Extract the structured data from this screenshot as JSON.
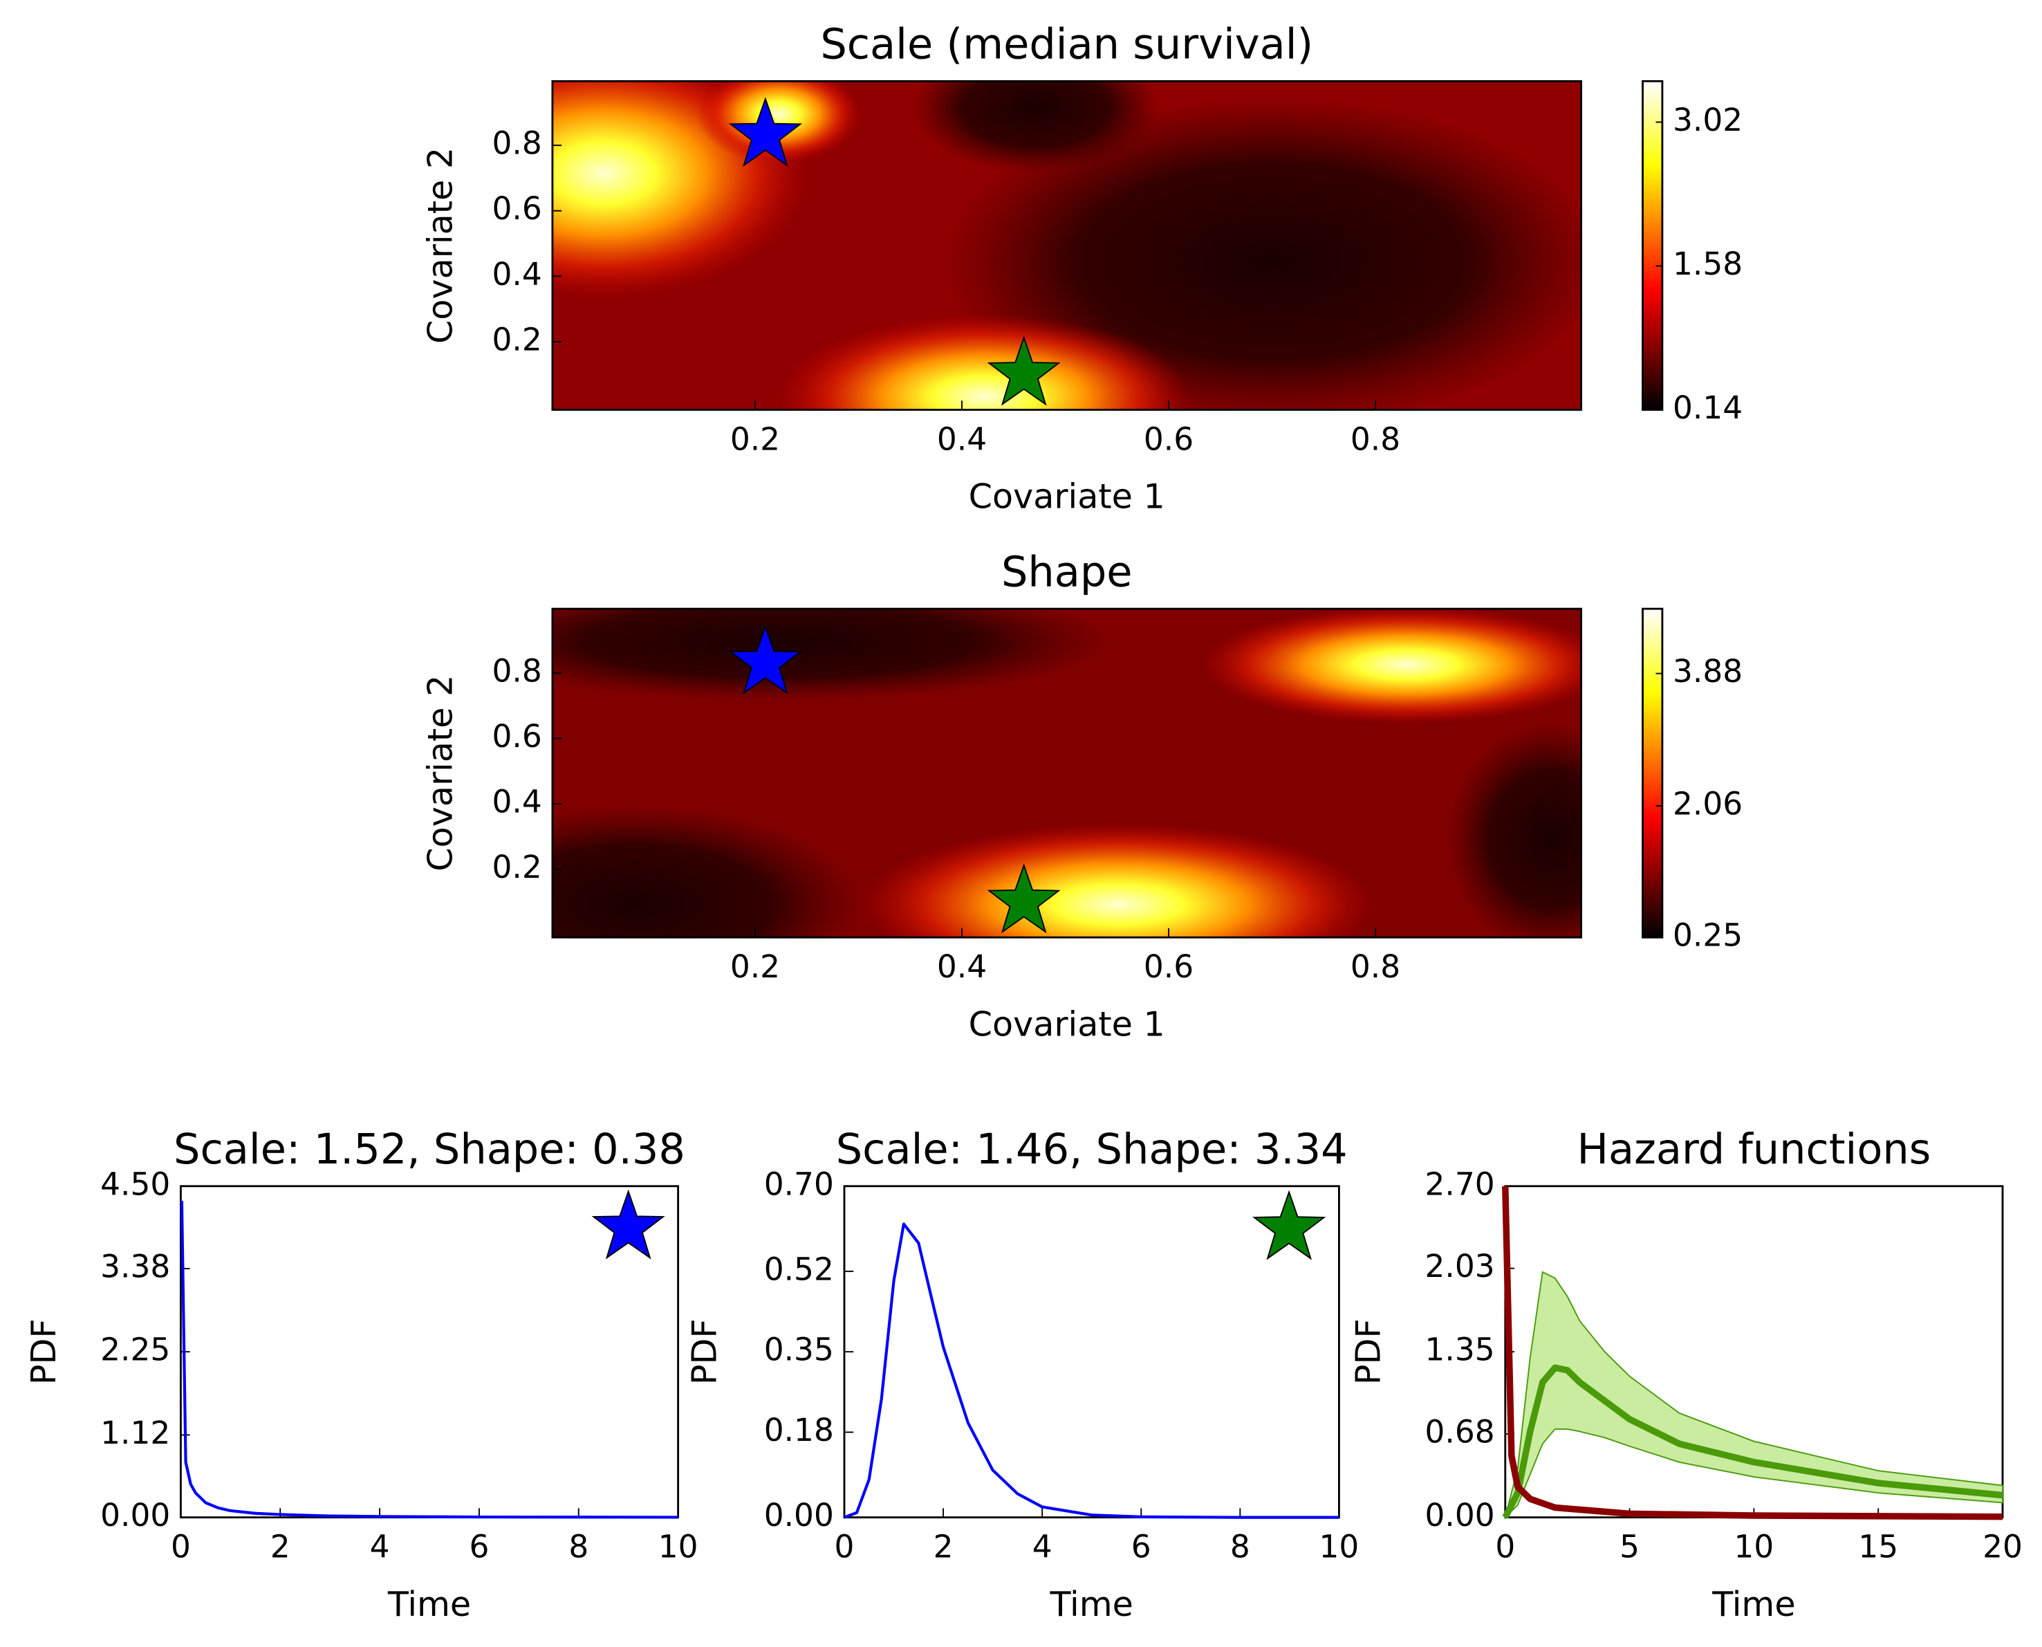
{
  "chart_data": [
    {
      "type": "contour",
      "title": "Scale (median survival)",
      "xlabel": "Covariate 1",
      "ylabel": "Covariate 2",
      "xlim": [
        0.004,
        0.999
      ],
      "ylim": [
        -0.008,
        0.996
      ],
      "xticks": [
        0.2,
        0.4,
        0.6,
        0.8
      ],
      "yticks": [
        0.2,
        0.4,
        0.6,
        0.8
      ],
      "colorbar": {
        "clim": [
          0.14,
          3.43
        ],
        "ticks": [
          0.14,
          1.58,
          3.02
        ]
      },
      "markers": [
        {
          "x": 0.21,
          "y": 0.83,
          "color": "#0000ff"
        },
        {
          "x": 0.46,
          "y": 0.1,
          "color": "#008000"
        }
      ]
    },
    {
      "type": "contour",
      "title": "Shape",
      "xlabel": "Covariate 1",
      "ylabel": "Covariate 2",
      "xlim": [
        0.004,
        0.999
      ],
      "ylim": [
        -0.008,
        0.996
      ],
      "xticks": [
        0.2,
        0.4,
        0.6,
        0.8
      ],
      "yticks": [
        0.2,
        0.4,
        0.6,
        0.8
      ],
      "colorbar": {
        "clim": [
          0.25,
          4.77
        ],
        "ticks": [
          0.25,
          2.06,
          3.88
        ]
      },
      "markers": [
        {
          "x": 0.21,
          "y": 0.83,
          "color": "#0000ff"
        },
        {
          "x": 0.46,
          "y": 0.1,
          "color": "#008000"
        }
      ]
    },
    {
      "type": "line",
      "title": "Scale: 1.52, Shape: 0.38",
      "xlabel": "Time",
      "ylabel": "PDF",
      "xlim": [
        0,
        10
      ],
      "ylim": [
        0,
        4.5
      ],
      "xticks": [
        0,
        2,
        4,
        6,
        8,
        10
      ],
      "yticks": [
        {
          "value": 0,
          "label": "0.00"
        },
        {
          "value": 1.12,
          "label": "1.12"
        },
        {
          "value": 2.25,
          "label": "2.25"
        },
        {
          "value": 3.38,
          "label": "3.38"
        },
        {
          "value": 4.5,
          "label": "4.50"
        }
      ],
      "series": [
        {
          "color": "#0000ff",
          "x": [
            0.02,
            0.1,
            0.2,
            0.3,
            0.5,
            0.75,
            1,
            1.5,
            2,
            3,
            4,
            5,
            6,
            8,
            10
          ],
          "values": [
            4.3,
            0.75,
            0.45,
            0.33,
            0.2,
            0.13,
            0.09,
            0.055,
            0.04,
            0.02,
            0.013,
            0.009,
            0.006,
            0.003,
            0.002
          ]
        }
      ],
      "markers": [
        {
          "x": 9,
          "y": 3.93,
          "color": "#0000ff"
        }
      ]
    },
    {
      "type": "line",
      "title": "Scale: 1.46, Shape: 3.34",
      "xlabel": "Time",
      "ylabel": "PDF",
      "xlim": [
        0,
        10
      ],
      "ylim": [
        0,
        0.7
      ],
      "xticks": [
        0,
        2,
        4,
        6,
        8,
        10
      ],
      "yticks": [
        {
          "value": 0,
          "label": "0.00"
        },
        {
          "value": 0.18,
          "label": "0.18"
        },
        {
          "value": 0.35,
          "label": "0.35"
        },
        {
          "value": 0.52,
          "label": "0.52"
        },
        {
          "value": 0.7,
          "label": "0.70"
        }
      ],
      "series": [
        {
          "color": "#0000ff",
          "x": [
            0,
            0.25,
            0.5,
            0.75,
            1,
            1.2,
            1.5,
            1.75,
            2,
            2.5,
            3,
            3.5,
            4,
            5,
            6,
            8,
            10
          ],
          "values": [
            0,
            0.01,
            0.08,
            0.25,
            0.5,
            0.62,
            0.58,
            0.47,
            0.36,
            0.2,
            0.1,
            0.05,
            0.022,
            0.005,
            0.001,
            0,
            0
          ]
        }
      ],
      "markers": [
        {
          "x": 8.99,
          "y": 0.61,
          "color": "#008000"
        }
      ]
    },
    {
      "type": "line",
      "title": "Hazard functions",
      "xlabel": "Time",
      "ylabel": "PDF",
      "xlim": [
        0,
        20
      ],
      "ylim": [
        0,
        2.7
      ],
      "xticks": [
        0,
        5,
        10,
        15,
        20
      ],
      "yticks": [
        {
          "value": 0,
          "label": "0.00"
        },
        {
          "value": 0.68,
          "label": "0.68"
        },
        {
          "value": 1.35,
          "label": "1.35"
        },
        {
          "value": 2.03,
          "label": "2.03"
        },
        {
          "value": 2.7,
          "label": "2.70"
        }
      ],
      "series": [
        {
          "color": "#4a9a0a",
          "band_color": "#c9eca0",
          "x": [
            0,
            0.5,
            1,
            1.5,
            2,
            2.5,
            3,
            4,
            5,
            7,
            10,
            15,
            20
          ],
          "values": [
            0,
            0.2,
            0.7,
            1.1,
            1.22,
            1.2,
            1.1,
            0.95,
            0.8,
            0.6,
            0.45,
            0.28,
            0.18
          ],
          "lower": [
            0,
            0.1,
            0.35,
            0.6,
            0.72,
            0.72,
            0.7,
            0.65,
            0.58,
            0.45,
            0.33,
            0.2,
            0.12
          ],
          "upper": [
            0,
            0.4,
            1.3,
            2.0,
            1.95,
            1.8,
            1.6,
            1.35,
            1.15,
            0.85,
            0.62,
            0.38,
            0.26
          ]
        },
        {
          "color": "#8b0000",
          "x": [
            0,
            0.25,
            0.5,
            1,
            2,
            5,
            10,
            20
          ],
          "values": [
            2.7,
            0.5,
            0.25,
            0.15,
            0.08,
            0.03,
            0.015,
            0.005
          ]
        }
      ]
    }
  ]
}
